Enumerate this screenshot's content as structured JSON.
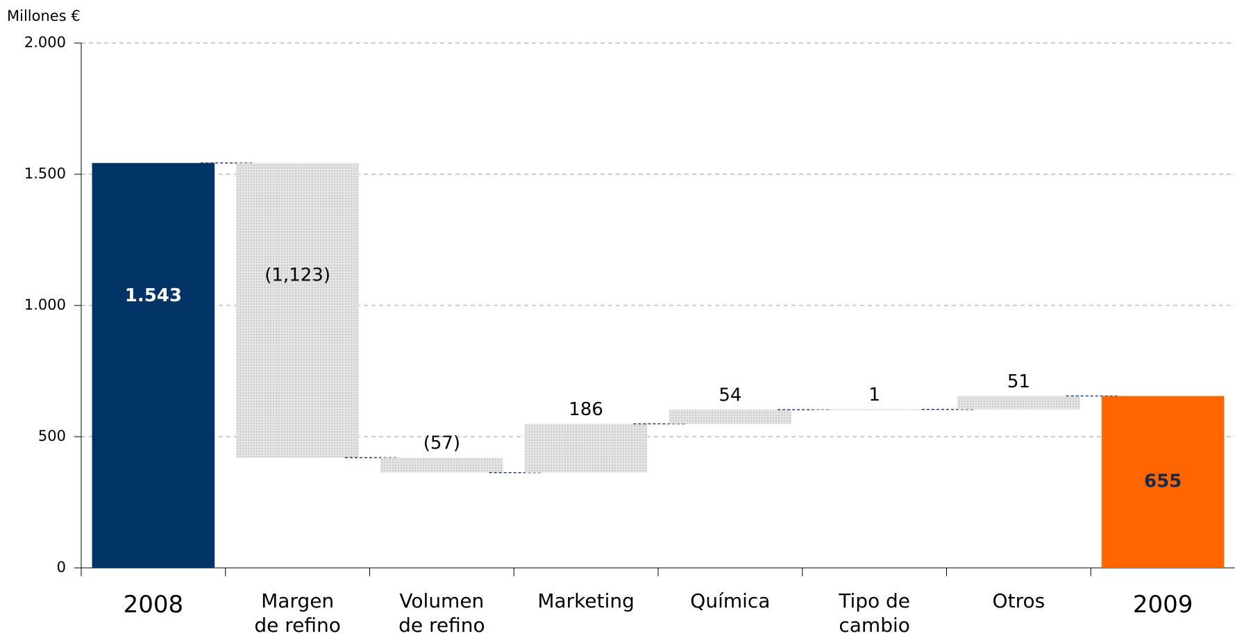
{
  "chart_data": {
    "type": "waterfall",
    "y_axis_label": "Millones €",
    "categories": [
      "2008",
      "Margen\nde refino",
      "Volumen\nde refino",
      "Marketing",
      "Química",
      "Tipo de\ncambio",
      "Otros",
      "2009"
    ],
    "measure": [
      "total",
      "relative",
      "relative",
      "relative",
      "relative",
      "relative",
      "relative",
      "total"
    ],
    "values": [
      1543,
      -1123,
      -57,
      186,
      54,
      1,
      51,
      655
    ],
    "value_labels": [
      "1.543",
      "(1,123)",
      "(57)",
      "186",
      "54",
      "1",
      "51",
      "655"
    ],
    "colors": {
      "start": "#003366",
      "end": "#ff6600",
      "delta": "#c8c8c8",
      "connector": "#1f3f73"
    },
    "ylim": [
      0,
      2000
    ],
    "yticks": [
      0,
      500,
      {
        "value": 1000,
        "label": "1.000"
      },
      {
        "value": 1500,
        "label": "1.500"
      },
      {
        "value": 2000,
        "label": "2.000"
      }
    ],
    "grid": true
  }
}
